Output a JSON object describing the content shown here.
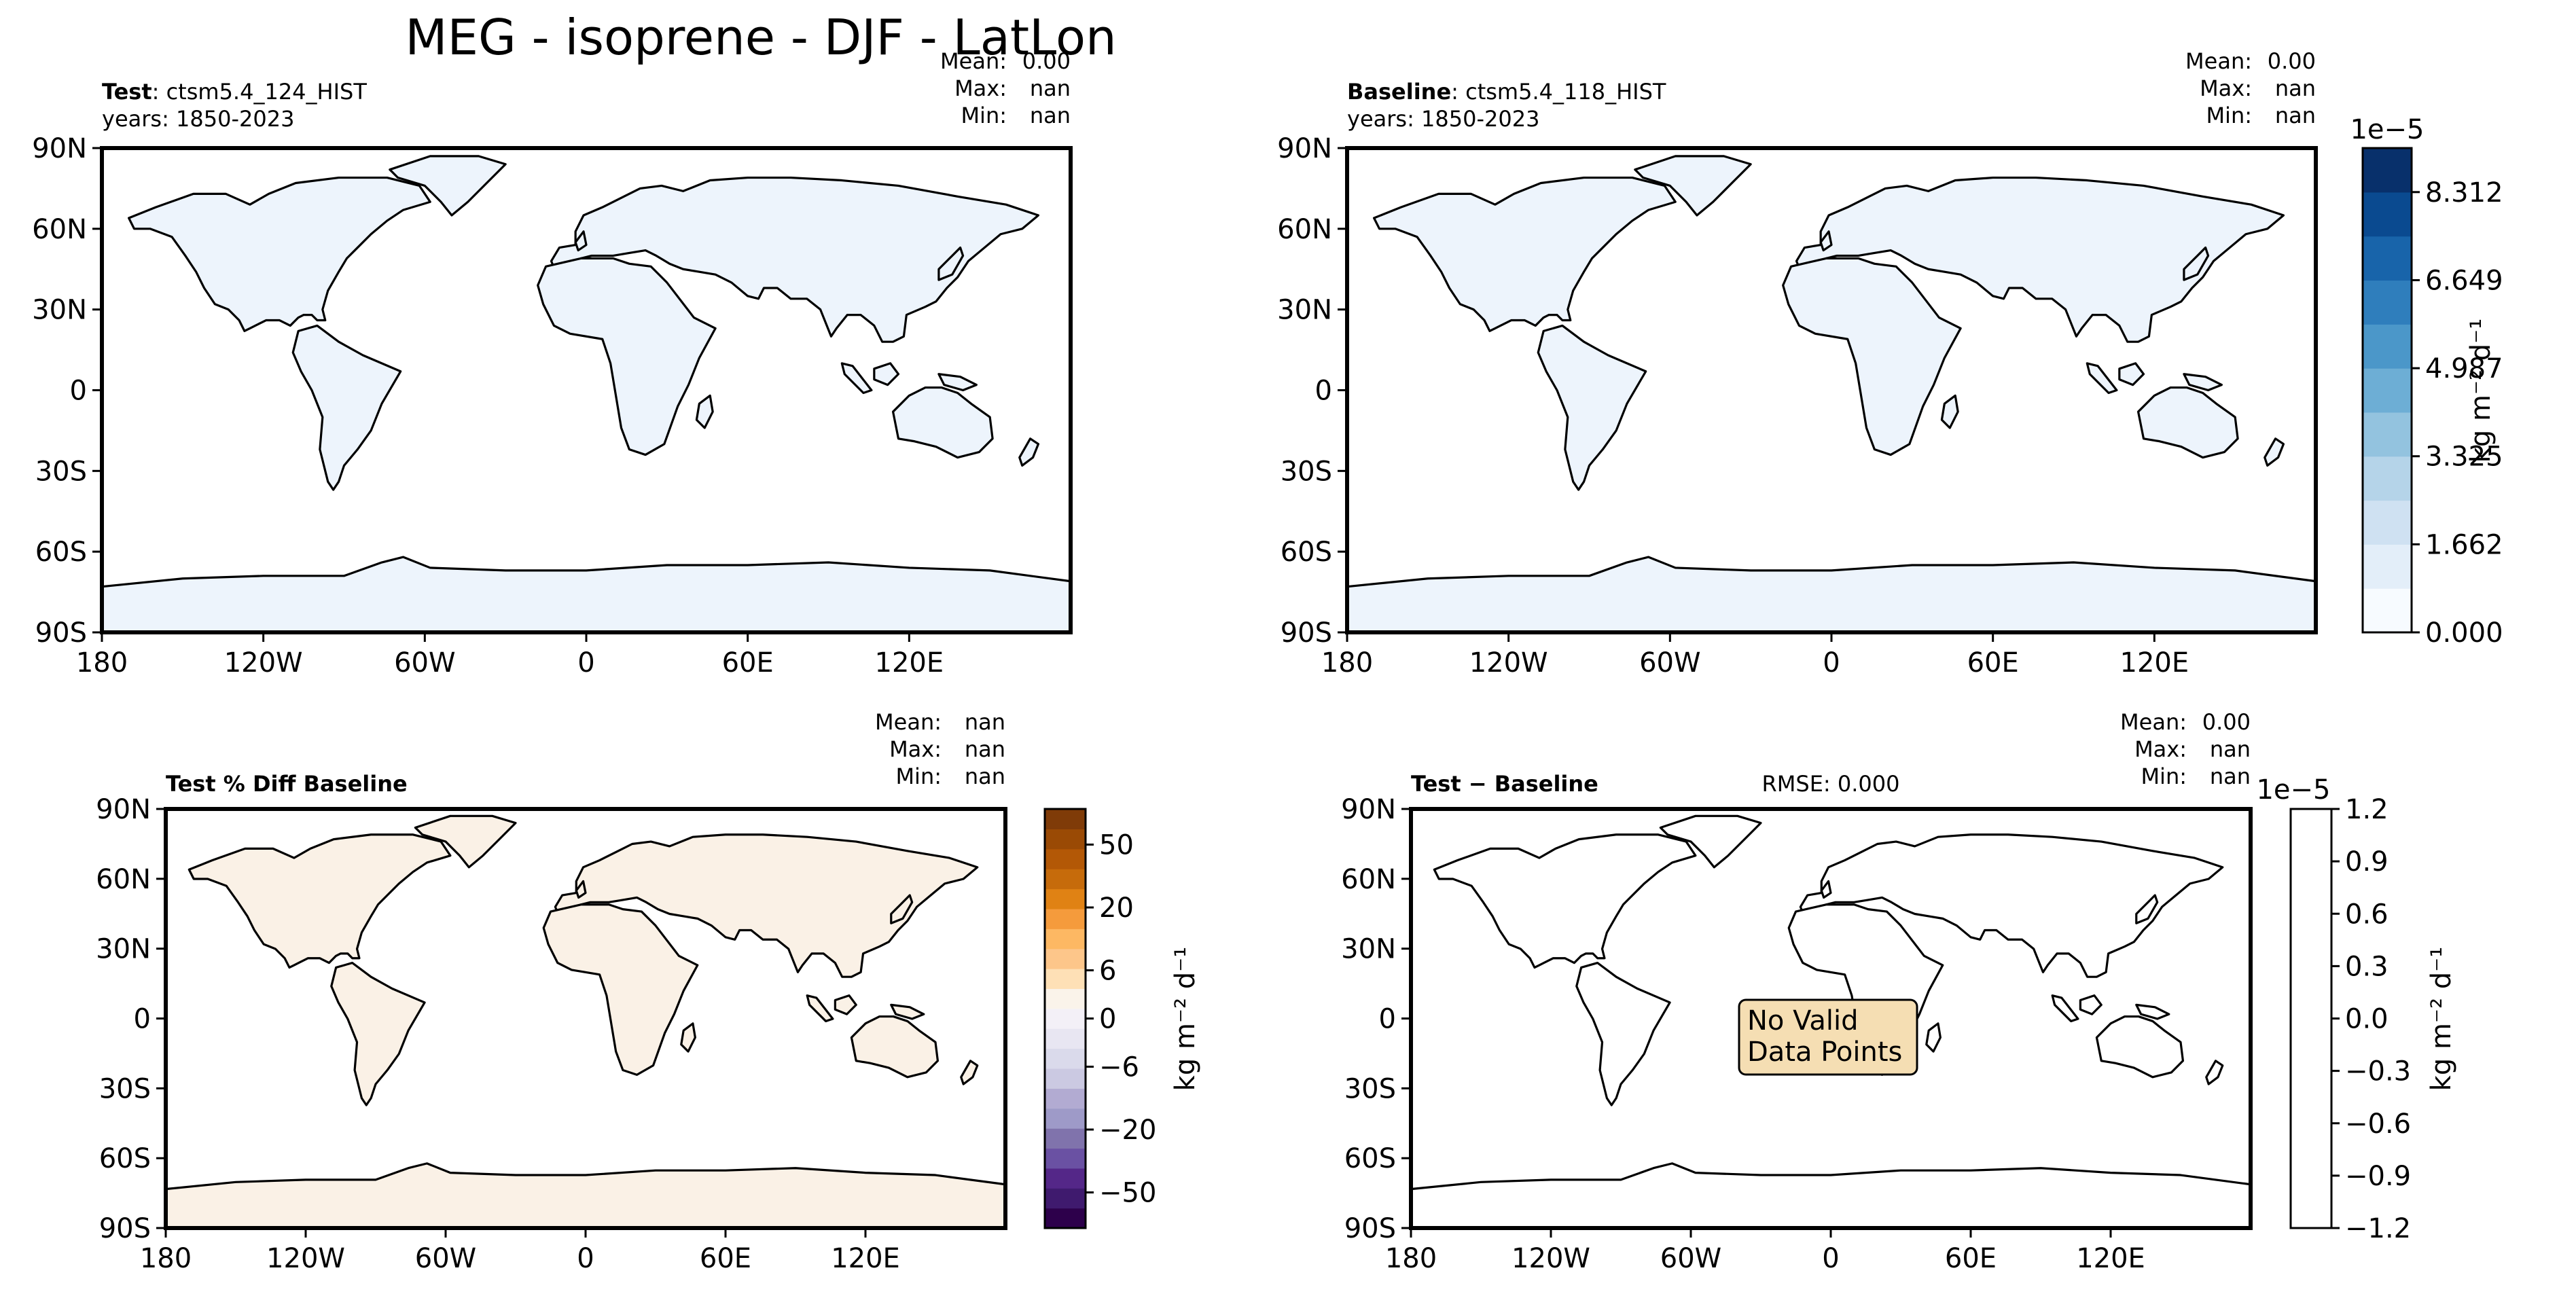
{
  "figure": {
    "title": "MEG - isoprene - DJF - LatLon"
  },
  "geo_axes": {
    "lat_ticks": [
      "90N",
      "60N",
      "30N",
      "0",
      "30S",
      "60S",
      "90S"
    ],
    "lon_ticks": [
      "180",
      "120W",
      "60W",
      "0",
      "60E",
      "120E"
    ]
  },
  "panels": {
    "test": {
      "label_bold": "Test",
      "label_rest": ": ctsm5.4_124_HIST",
      "years": "years: 1850-2023",
      "stats": {
        "mean_label": "Mean:",
        "mean": "0.00",
        "max_label": "Max:",
        "max": "nan",
        "min_label": "Min:",
        "min": "nan"
      },
      "fill_color": "#edf4fc"
    },
    "baseline": {
      "label_bold": "Baseline",
      "label_rest": ": ctsm5.4_118_HIST",
      "years": "years: 1850-2023",
      "stats": {
        "mean_label": "Mean:",
        "mean": "0.00",
        "max_label": "Max:",
        "max": "nan",
        "min_label": "Min:",
        "min": "nan"
      },
      "fill_color": "#edf4fc"
    },
    "pct_diff": {
      "label": "Test % Diff Baseline",
      "stats": {
        "mean_label": "Mean:",
        "mean": "nan",
        "max_label": "Max:",
        "max": "nan",
        "min_label": "Min:",
        "min": "nan"
      },
      "fill_color": "#faf1e6"
    },
    "diff": {
      "label": "Test − Baseline",
      "rmse": "RMSE: 0.000",
      "stats": {
        "mean_label": "Mean:",
        "mean": "0.00",
        "max_label": "Max:",
        "max": "nan",
        "min_label": "Min:",
        "min": "nan"
      },
      "annotation": [
        "No Valid",
        "Data Points"
      ],
      "annotation_color": "#f5deb3"
    }
  },
  "colorbars": {
    "top": {
      "exponent": "1e−5",
      "label": "kg m⁻² d⁻¹",
      "ticks": [
        "0.000",
        "1.662",
        "3.325",
        "4.987",
        "6.649",
        "8.312"
      ],
      "colors": [
        "#f7fbff",
        "#e3eef9",
        "#cfe1f2",
        "#b5d4e9",
        "#93c3df",
        "#6daed5",
        "#4b97c9",
        "#2f7ebc",
        "#1864aa",
        "#0a4a90",
        "#08306b"
      ]
    },
    "pct": {
      "label": "kg m⁻² d⁻¹",
      "ticks": [
        "50",
        "20",
        "6",
        "0",
        "−6",
        "−20",
        "−50"
      ],
      "colors": [
        "#2d004b",
        "#3f1a6e",
        "#542788",
        "#6a51a3",
        "#8073ac",
        "#9e9ac8",
        "#b2abd2",
        "#cbc9e2",
        "#dadaeb",
        "#e8e6f2",
        "#f3f0f7",
        "#faf3ea",
        "#fee0b6",
        "#fdc68a",
        "#fdb863",
        "#f59b3c",
        "#e08214",
        "#c66b0b",
        "#b35806",
        "#9a4a05",
        "#7f3b08"
      ]
    },
    "diff": {
      "exponent": "1e−5",
      "label": "kg m⁻² d⁻¹",
      "ticks": [
        "1.2",
        "0.9",
        "0.6",
        "0.3",
        "0.0",
        "−0.3",
        "−0.6",
        "−0.9",
        "−1.2"
      ]
    }
  }
}
